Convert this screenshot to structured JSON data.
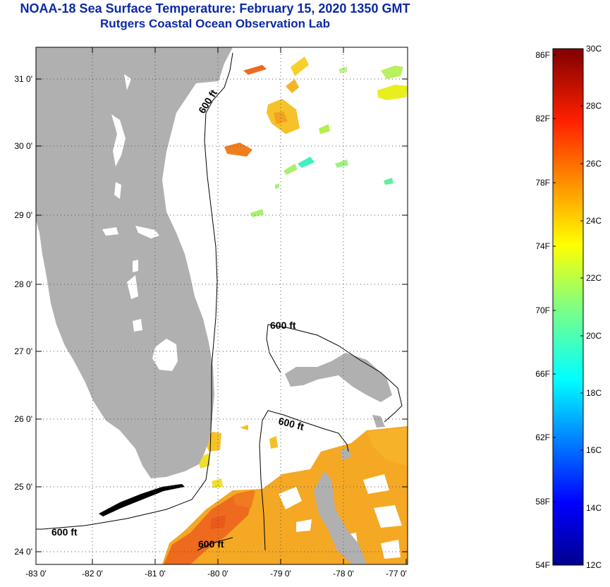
{
  "header": {
    "title": "NOAA-18 Sea Surface Temperature:  February 15, 2020 1350 GMT",
    "subtitle": "Rutgers Coastal Ocean Observation Lab"
  },
  "map": {
    "lon_ticks": [
      "-83 0'",
      "-82 0'",
      "-81 0'",
      "-80 0'",
      "-79 0'",
      "-78 0'",
      "-77 0'"
    ],
    "lat_ticks": [
      "31 0'",
      "30 0'",
      "29 0'",
      "28 0'",
      "27 0'",
      "26 0'",
      "25 0'",
      "24 0'"
    ],
    "contour_label": "600 ft",
    "colors": {
      "land": "#b0b0b0",
      "ocean": "#ffffff",
      "frame": "#000000",
      "title": "#0b2aa6"
    }
  },
  "colorbar": {
    "fahrenheit_labels": [
      "86F",
      "82F",
      "78F",
      "74F",
      "70F",
      "66F",
      "62F",
      "58F",
      "54F"
    ],
    "celsius_labels": [
      "30C",
      "28C",
      "26C",
      "24C",
      "22C",
      "20C",
      "18C",
      "16C",
      "14C",
      "12C"
    ]
  }
}
